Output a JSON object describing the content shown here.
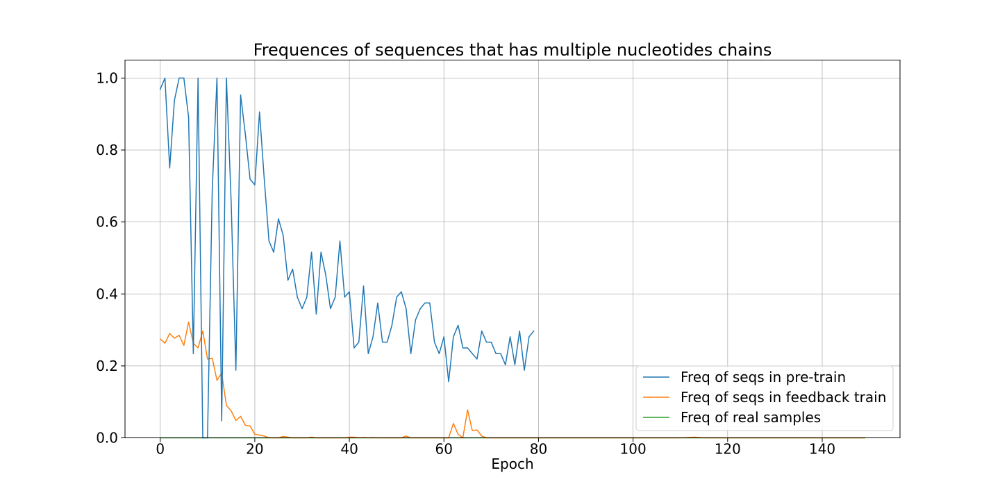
{
  "chart_data": {
    "type": "line",
    "title": "Frequences of sequences that has multiple nucleotides chains",
    "xlabel": "Epoch",
    "ylabel": "",
    "xlim": [
      -7.45,
      156.45
    ],
    "ylim": [
      0,
      1.05
    ],
    "xticks": [
      0,
      20,
      40,
      60,
      80,
      100,
      120,
      140
    ],
    "yticks": [
      0.0,
      0.2,
      0.4,
      0.6,
      0.8,
      1.0
    ],
    "xtick_labels": [
      "0",
      "20",
      "40",
      "60",
      "80",
      "100",
      "120",
      "140"
    ],
    "ytick_labels": [
      "0.0",
      "0.2",
      "0.4",
      "0.6",
      "0.8",
      "1.0"
    ],
    "grid": true,
    "legend_position": "lower-right",
    "series": [
      {
        "name": "Freq of seqs in pre-train",
        "color": "#1f77b4",
        "x": [
          0,
          1,
          2,
          3,
          4,
          5,
          6,
          7,
          8,
          9,
          10,
          11,
          12,
          13,
          14,
          15,
          16,
          17,
          18,
          19,
          20,
          21,
          22,
          23,
          24,
          25,
          26,
          27,
          28,
          29,
          30,
          31,
          32,
          33,
          34,
          35,
          36,
          37,
          38,
          39,
          40,
          41,
          42,
          43,
          44,
          45,
          46,
          47,
          48,
          49,
          50,
          51,
          52,
          53,
          54,
          55,
          56,
          57,
          58,
          59,
          60,
          61,
          62,
          63,
          64,
          65,
          66,
          67,
          68,
          69,
          70,
          71,
          72,
          73,
          74,
          75,
          76,
          77,
          78,
          79
        ],
        "y": [
          0.969,
          1.0,
          0.75,
          0.938,
          1.0,
          1.0,
          0.891,
          0.234,
          1.0,
          0.0,
          0.0,
          0.688,
          1.0,
          0.047,
          1.0,
          0.656,
          0.188,
          0.953,
          0.844,
          0.719,
          0.703,
          0.906,
          0.719,
          0.547,
          0.516,
          0.609,
          0.563,
          0.438,
          0.469,
          0.391,
          0.359,
          0.391,
          0.516,
          0.344,
          0.516,
          0.453,
          0.359,
          0.391,
          0.547,
          0.391,
          0.406,
          0.25,
          0.266,
          0.422,
          0.234,
          0.281,
          0.375,
          0.266,
          0.266,
          0.313,
          0.391,
          0.406,
          0.359,
          0.234,
          0.328,
          0.359,
          0.375,
          0.375,
          0.266,
          0.234,
          0.281,
          0.156,
          0.281,
          0.313,
          0.25,
          0.25,
          0.234,
          0.219,
          0.297,
          0.266,
          0.266,
          0.234,
          0.234,
          0.203,
          0.281,
          0.203,
          0.297,
          0.188,
          0.281,
          0.297
        ]
      },
      {
        "name": "Freq of seqs in feedback train",
        "color": "#ff7f0e",
        "x": [
          0,
          1,
          2,
          3,
          4,
          5,
          6,
          7,
          8,
          9,
          10,
          11,
          12,
          13,
          14,
          15,
          16,
          17,
          18,
          19,
          20,
          21,
          22,
          23,
          24,
          25,
          26,
          27,
          28,
          29,
          30,
          31,
          32,
          33,
          34,
          35,
          36,
          37,
          38,
          39,
          40,
          41,
          42,
          43,
          44,
          45,
          46,
          47,
          48,
          49,
          50,
          51,
          52,
          53,
          54,
          55,
          56,
          57,
          58,
          59,
          60,
          61,
          62,
          63,
          64,
          65,
          66,
          67,
          68,
          69,
          70,
          71,
          72,
          73,
          74,
          75,
          76,
          77,
          78,
          79,
          80,
          85,
          90,
          95,
          100,
          105,
          110,
          113,
          115,
          120,
          125,
          130,
          135,
          140,
          145,
          149
        ],
        "y": [
          0.275,
          0.263,
          0.29,
          0.277,
          0.285,
          0.257,
          0.322,
          0.263,
          0.25,
          0.297,
          0.219,
          0.221,
          0.16,
          0.18,
          0.09,
          0.075,
          0.048,
          0.06,
          0.035,
          0.033,
          0.01,
          0.008,
          0.005,
          0.0,
          0.0,
          0.0,
          0.004,
          0.002,
          0.0,
          0.0,
          0.0,
          0.0,
          0.002,
          0.0,
          0.0,
          0.0,
          0.0,
          0.0,
          0.0,
          0.0,
          0.002,
          0.002,
          0.0,
          0.001,
          0.0,
          0.001,
          0.0,
          0.0,
          0.0,
          0.0,
          0.0,
          0.0,
          0.005,
          0.0,
          0.0,
          0.0,
          0.0,
          0.0,
          0.0,
          0.0,
          0.0,
          0.0,
          0.04,
          0.01,
          0.0,
          0.078,
          0.02,
          0.022,
          0.005,
          0.0,
          0.0,
          0.0,
          0.0,
          0.0,
          0.0,
          0.0,
          0.0,
          0.0,
          0.0,
          0.0,
          0.0,
          0.0,
          0.0,
          0.0,
          0.0,
          0.0,
          0.0,
          0.002,
          0.0,
          0.0,
          0.0,
          0.0,
          0.0,
          0.0,
          0.0,
          0.0
        ]
      },
      {
        "name": "Freq of real samples",
        "color": "#2ca02c",
        "x": [
          0,
          149
        ],
        "y": [
          0.0,
          0.0
        ]
      }
    ]
  }
}
